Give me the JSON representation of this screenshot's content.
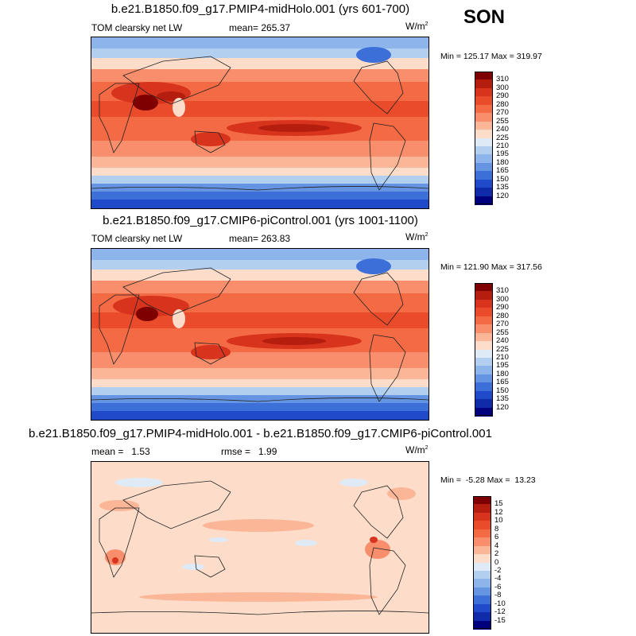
{
  "season": "SON",
  "panels": [
    {
      "title": "b.e21.B1850.f09_g17.PMIP4-midHolo.001 (yrs 601-700)",
      "left_label": "TOM clearsky net LW",
      "center_label": "mean= 265.37",
      "units": "W/m",
      "units_sup": "2",
      "minmax": "Min = 125.17 Max = 319.97",
      "levels": [
        "310",
        "300",
        "290",
        "280",
        "270",
        "255",
        "240",
        "225",
        "210",
        "195",
        "180",
        "165",
        "150",
        "135",
        "120"
      ],
      "colors": [
        "#7f0000",
        "#b51d0f",
        "#d8341d",
        "#ea4b2b",
        "#f46a45",
        "#f88e6c",
        "#fbb597",
        "#fdddc9",
        "#deebf7",
        "#b2cff0",
        "#8db5ec",
        "#6494e2",
        "#3d6fd8",
        "#1f4ac9",
        "#0f2ba9",
        "#00007f"
      ]
    },
    {
      "title": "b.e21.B1850.f09_g17.CMIP6-piControl.001 (yrs 1001-1100)",
      "left_label": "TOM clearsky net LW",
      "center_label": "mean= 263.83",
      "units": "W/m",
      "units_sup": "2",
      "minmax": "Min = 121.90 Max = 317.56",
      "levels": [
        "310",
        "300",
        "290",
        "280",
        "270",
        "255",
        "240",
        "225",
        "210",
        "195",
        "180",
        "165",
        "150",
        "135",
        "120"
      ],
      "colors": [
        "#7f0000",
        "#b51d0f",
        "#d8341d",
        "#ea4b2b",
        "#f46a45",
        "#f88e6c",
        "#fbb597",
        "#fdddc9",
        "#deebf7",
        "#b2cff0",
        "#8db5ec",
        "#6494e2",
        "#3d6fd8",
        "#1f4ac9",
        "#0f2ba9",
        "#00007f"
      ]
    },
    {
      "title": "b.e21.B1850.f09_g17.PMIP4-midHolo.001 - b.e21.B1850.f09_g17.CMIP6-piControl.001",
      "left_label": "mean =   1.53",
      "center_label": "rmse =   1.99",
      "units": "W/m",
      "units_sup": "2",
      "minmax": "Min =  -5.28 Max =  13.23",
      "levels": [
        "15",
        "12",
        "10",
        "8",
        "6",
        "4",
        "2",
        "0",
        "-2",
        "-4",
        "-6",
        "-8",
        "-10",
        "-12",
        "-15"
      ],
      "colors": [
        "#7f0000",
        "#b51d0f",
        "#d8341d",
        "#ea4b2b",
        "#f46a45",
        "#f88e6c",
        "#fbb597",
        "#fdddc9",
        "#deebf7",
        "#b2cff0",
        "#8db5ec",
        "#6494e2",
        "#3d6fd8",
        "#1f4ac9",
        "#0f2ba9",
        "#00007f"
      ]
    }
  ]
}
